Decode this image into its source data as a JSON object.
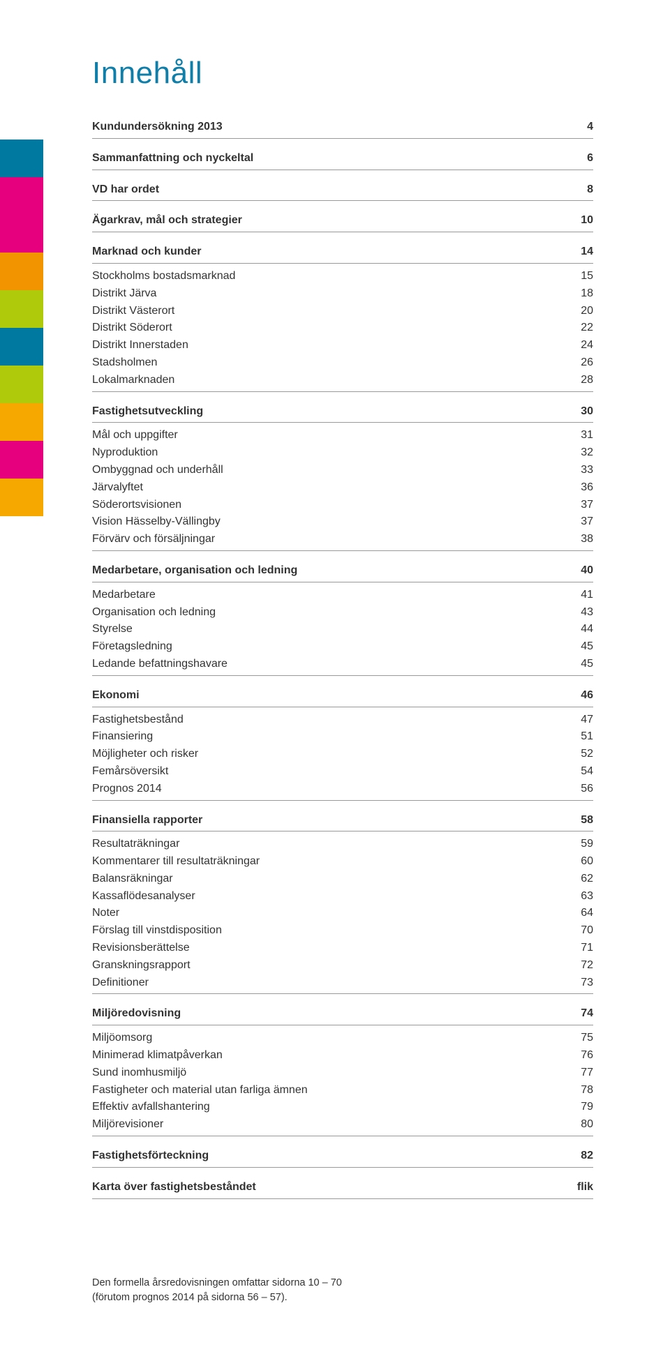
{
  "title": "Innehåll",
  "tab_colors": [
    "#0079a1",
    "#e6007e",
    "#e6007e",
    "#f29400",
    "#afca0b",
    "#0079a1",
    "#afca0b",
    "#f6a800",
    "#e6007e",
    "#f6a800"
  ],
  "sections": [
    {
      "type": "single",
      "label": "Kundundersökning 2013",
      "page": "4"
    },
    {
      "type": "single",
      "label": "Sammanfattning och nyckeltal",
      "page": "6"
    },
    {
      "type": "single",
      "label": "VD har ordet",
      "page": "8"
    },
    {
      "type": "single",
      "label": "Ägarkrav, mål och strategier",
      "page": "10"
    },
    {
      "type": "group",
      "head": {
        "label": "Marknad och kunder",
        "page": "14"
      },
      "items": [
        {
          "label": "Stockholms bostadsmarknad",
          "page": "15"
        },
        {
          "label": "Distrikt Järva",
          "page": "18"
        },
        {
          "label": "Distrikt Västerort",
          "page": "20"
        },
        {
          "label": "Distrikt Söderort",
          "page": "22"
        },
        {
          "label": "Distrikt Innerstaden",
          "page": "24"
        },
        {
          "label": "Stadsholmen",
          "page": "26"
        },
        {
          "label": "Lokalmarknaden",
          "page": "28"
        }
      ]
    },
    {
      "type": "group",
      "head": {
        "label": "Fastighetsutveckling",
        "page": "30"
      },
      "items": [
        {
          "label": "Mål och uppgifter",
          "page": "31"
        },
        {
          "label": "Nyproduktion",
          "page": "32"
        },
        {
          "label": "Ombyggnad och underhåll",
          "page": "33"
        },
        {
          "label": "Järvalyftet",
          "page": "36"
        },
        {
          "label": "Söderortsvisionen",
          "page": "37"
        },
        {
          "label": "Vision Hässelby-Vällingby",
          "page": "37"
        },
        {
          "label": "Förvärv och försäljningar",
          "page": "38"
        }
      ]
    },
    {
      "type": "group",
      "head": {
        "label": "Medarbetare, organisation och ledning",
        "page": "40"
      },
      "items": [
        {
          "label": "Medarbetare",
          "page": "41"
        },
        {
          "label": "Organisation och ledning",
          "page": "43"
        },
        {
          "label": "Styrelse",
          "page": "44"
        },
        {
          "label": "Företagsledning",
          "page": "45"
        },
        {
          "label": "Ledande befattningshavare",
          "page": "45"
        }
      ]
    },
    {
      "type": "group",
      "head": {
        "label": "Ekonomi",
        "page": "46"
      },
      "items": [
        {
          "label": "Fastighetsbestånd",
          "page": "47"
        },
        {
          "label": "Finansiering",
          "page": "51"
        },
        {
          "label": "Möjligheter och risker",
          "page": "52"
        },
        {
          "label": "Femårsöversikt",
          "page": "54"
        },
        {
          "label": "Prognos 2014",
          "page": "56"
        }
      ]
    },
    {
      "type": "group",
      "head": {
        "label": "Finansiella rapporter",
        "page": "58"
      },
      "items": [
        {
          "label": "Resultaträkningar",
          "page": "59"
        },
        {
          "label": "Kommentarer till resultaträkningar",
          "page": "60"
        },
        {
          "label": "Balansräkningar",
          "page": "62"
        },
        {
          "label": "Kassaflödesanalyser",
          "page": "63"
        },
        {
          "label": "Noter",
          "page": "64"
        },
        {
          "label": "Förslag till vinstdisposition",
          "page": "70"
        },
        {
          "label": "Revisionsberättelse",
          "page": "71"
        },
        {
          "label": "Granskningsrapport",
          "page": "72"
        },
        {
          "label": "Definitioner",
          "page": "73"
        }
      ]
    },
    {
      "type": "group",
      "head": {
        "label": "Miljöredovisning",
        "page": "74"
      },
      "items": [
        {
          "label": "Miljöomsorg",
          "page": "75"
        },
        {
          "label": "Minimerad klimatpåverkan",
          "page": "76"
        },
        {
          "label": "Sund inomhusmiljö",
          "page": "77"
        },
        {
          "label": "Fastigheter och material utan farliga ämnen",
          "page": "78"
        },
        {
          "label": "Effektiv avfallshantering",
          "page": "79"
        },
        {
          "label": "Miljörevisioner",
          "page": "80"
        }
      ]
    },
    {
      "type": "single",
      "label": "Fastighetsförteckning",
      "page": "82"
    },
    {
      "type": "single",
      "label": "Karta över fastighetsbeståndet",
      "page": "flik"
    }
  ],
  "footnote_line1": "Den formella årsredovisningen omfattar sidorna 10 – 70",
  "footnote_line2": "(förutom prognos 2014 på sidorna 56 – 57)."
}
